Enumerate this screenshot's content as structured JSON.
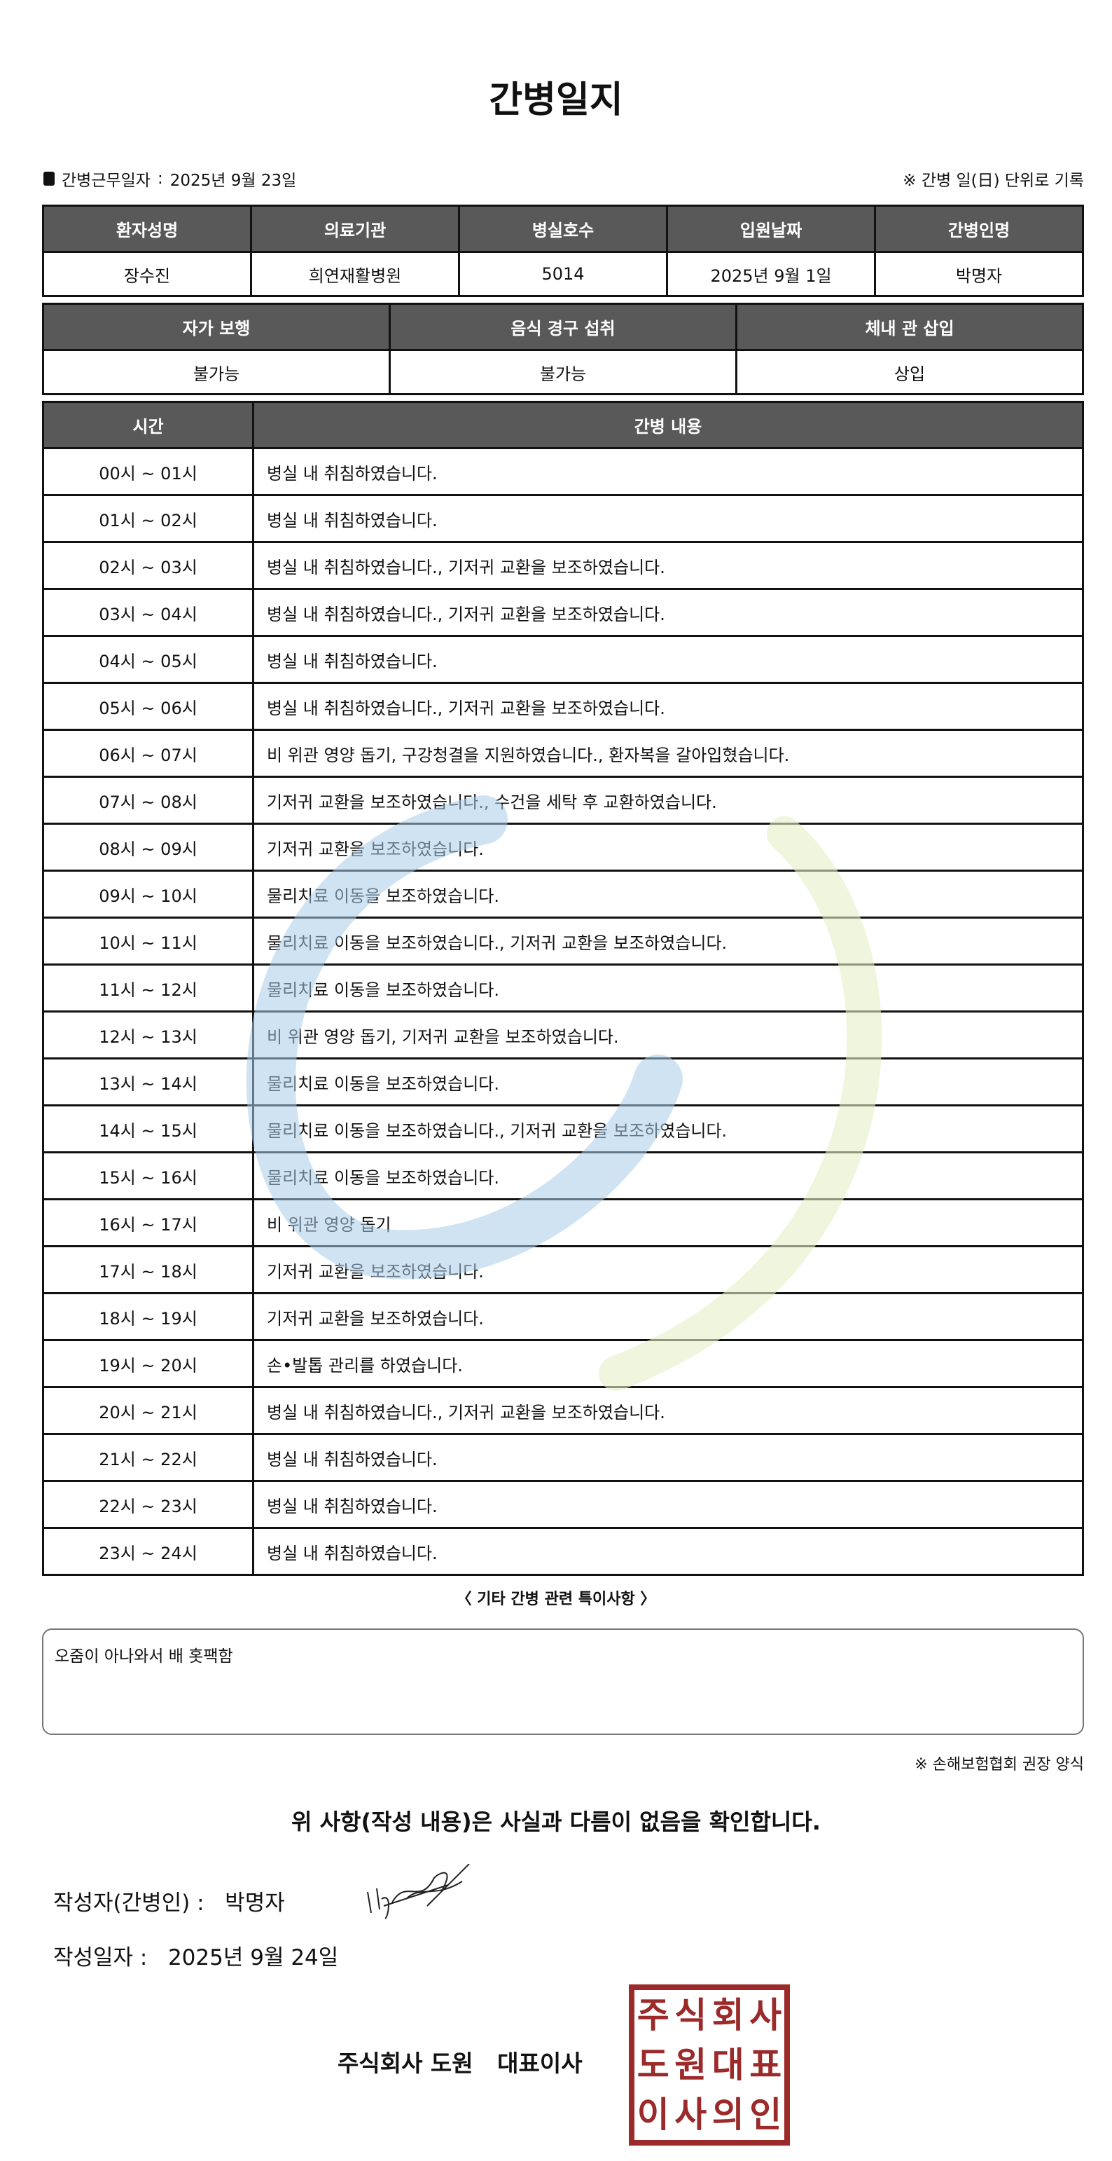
{
  "title": "간병일지",
  "work_date_label": "간병근무일자",
  "work_date": "2025년 9월 23일",
  "note_unit": "※ 간병 일(日) 단위로 기록",
  "info_headers": [
    "환자성명",
    "의료기관",
    "병실호수",
    "입원날짜",
    "간병인명"
  ],
  "info_values": [
    "장수진",
    "희연재활병원",
    "5014",
    "2025년 9월 1일",
    "박명자"
  ],
  "status_headers": [
    "자가 보행",
    "음식 경구 섭취",
    "체내 관 삽입"
  ],
  "status_values": [
    "불가능",
    "불가능",
    "상입"
  ],
  "log_headers": [
    "시간",
    "간병 내용"
  ],
  "log_rows": [
    [
      "00시 ~ 01시",
      "병실 내 취침하였습니다."
    ],
    [
      "01시 ~ 02시",
      "병실 내 취침하였습니다."
    ],
    [
      "02시 ~ 03시",
      "병실 내 취침하였습니다., 기저귀 교환을 보조하였습니다."
    ],
    [
      "03시 ~ 04시",
      "병실 내 취침하였습니다., 기저귀 교환을 보조하였습니다."
    ],
    [
      "04시 ~ 05시",
      "병실 내 취침하였습니다."
    ],
    [
      "05시 ~ 06시",
      "병실 내 취침하였습니다., 기저귀 교환을 보조하였습니다."
    ],
    [
      "06시 ~ 07시",
      "비 위관 영양 돕기, 구강청결을 지원하였습니다., 환자복을 갈아입혔습니다."
    ],
    [
      "07시 ~ 08시",
      "기저귀 교환을 보조하였습니다., 수건을 세탁 후 교환하였습니다."
    ],
    [
      "08시 ~ 09시",
      "기저귀 교환을 보조하였습니다."
    ],
    [
      "09시 ~ 10시",
      "물리치료 이동을 보조하였습니다."
    ],
    [
      "10시 ~ 11시",
      "물리치료 이동을 보조하였습니다., 기저귀 교환을 보조하였습니다."
    ],
    [
      "11시 ~ 12시",
      "물리치료 이동을 보조하였습니다."
    ],
    [
      "12시 ~ 13시",
      "비 위관 영양 돕기, 기저귀 교환을 보조하였습니다."
    ],
    [
      "13시 ~ 14시",
      "물리치료 이동을 보조하였습니다."
    ],
    [
      "14시 ~ 15시",
      "물리치료 이동을 보조하였습니다., 기저귀 교환을 보조하였습니다."
    ],
    [
      "15시 ~ 16시",
      "물리치료 이동을 보조하였습니다."
    ],
    [
      "16시 ~ 17시",
      "비 위관 영양 돕기"
    ],
    [
      "17시 ~ 18시",
      "기저귀 교환을 보조하였습니다."
    ],
    [
      "18시 ~ 19시",
      "기저귀 교환을 보조하였습니다."
    ],
    [
      "19시 ~ 20시",
      "손•발톱 관리를 하였습니다."
    ],
    [
      "20시 ~ 21시",
      "병실 내 취침하였습니다., 기저귀 교환을 보조하였습니다."
    ],
    [
      "21시 ~ 22시",
      "병실 내 취침하였습니다."
    ],
    [
      "22시 ~ 23시",
      "병실 내 취침하였습니다."
    ],
    [
      "23시 ~ 24시",
      "병실 내 취침하였습니다."
    ]
  ],
  "notes_title": "〈 기타 간병 관련 특이사항 〉",
  "notes": "오줌이 아나와서 배 홋팩함",
  "form_note": "※ 손해보험협회 권장 양식",
  "confirm": "위 사항(작성 내용)은 사실과 다름이 없음을 확인합니다.",
  "writer_label": "작성자(간병인) :",
  "writer": "박명자",
  "written_date_label": "작성일자 :",
  "written_date": "2025년 9월 24일",
  "company": "주식회사 도원",
  "ceo": "대표이사",
  "stamp_text": "주식회사도원대표이사의인",
  "colors": {
    "header_bg": "#595959",
    "stamp": "#9b2a2a",
    "watermark_blue": "#c9def0",
    "watermark_green": "#eef3d8"
  }
}
